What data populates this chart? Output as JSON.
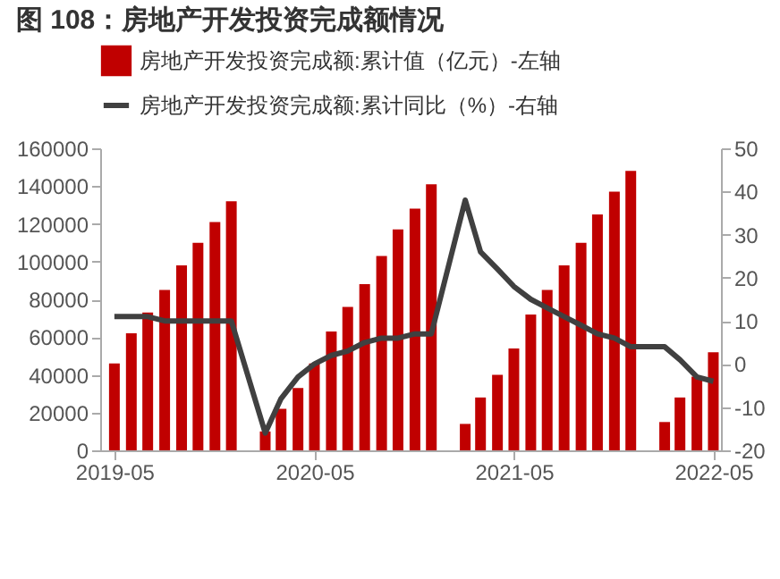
{
  "chart_data": {
    "type": "bar",
    "title": "图 108：房地产开发投资完成额情况",
    "x": [
      "2019-05",
      "2019-06",
      "2019-07",
      "2019-08",
      "2019-09",
      "2019-10",
      "2019-11",
      "2019-12",
      "2020-02",
      "2020-03",
      "2020-04",
      "2020-05",
      "2020-06",
      "2020-07",
      "2020-08",
      "2020-09",
      "2020-10",
      "2020-11",
      "2020-12",
      "2021-02",
      "2021-03",
      "2021-04",
      "2021-05",
      "2021-06",
      "2021-07",
      "2021-08",
      "2021-09",
      "2021-10",
      "2021-11",
      "2021-12",
      "2022-02",
      "2022-03",
      "2022-04",
      "2022-05"
    ],
    "series": [
      {
        "name": "房地产开发投资完成额:累计值（亿元）-左轴",
        "color": "#c00000",
        "values": [
          46000,
          62000,
          73000,
          85000,
          98000,
          110000,
          121000,
          132000,
          10000,
          22000,
          33000,
          46000,
          63000,
          76000,
          88000,
          103000,
          117000,
          128000,
          141000,
          14000,
          28000,
          40000,
          54000,
          72000,
          85000,
          98000,
          110000,
          125000,
          137000,
          148000,
          15000,
          28000,
          39000,
          52000
        ]
      },
      {
        "name": "房地产开发投资完成额:累计同比（%）-右轴",
        "type": "line",
        "axis": "y2",
        "color": "#404040",
        "values": [
          11,
          11,
          11,
          10,
          10,
          10,
          10,
          10,
          -16,
          -8,
          -3,
          0,
          2,
          3,
          5,
          6,
          6,
          7,
          7,
          38,
          26,
          22,
          18,
          15,
          13,
          11,
          9,
          7,
          6,
          4,
          4,
          1,
          -3,
          -4
        ]
      }
    ],
    "xlim": [
      "2019-04-05",
      "2022-05-15"
    ],
    "xticks": [
      "2019-05",
      "2020-05",
      "2021-05",
      "2022-05"
    ],
    "ylim": [
      0,
      160000
    ],
    "yticks": [
      0,
      20000,
      40000,
      60000,
      80000,
      100000,
      120000,
      140000,
      160000
    ],
    "y2lim": [
      -20,
      50
    ],
    "y2ticks": [
      -20,
      -10,
      0,
      10,
      20,
      30,
      40,
      50
    ],
    "grid": false,
    "legend": "top"
  }
}
